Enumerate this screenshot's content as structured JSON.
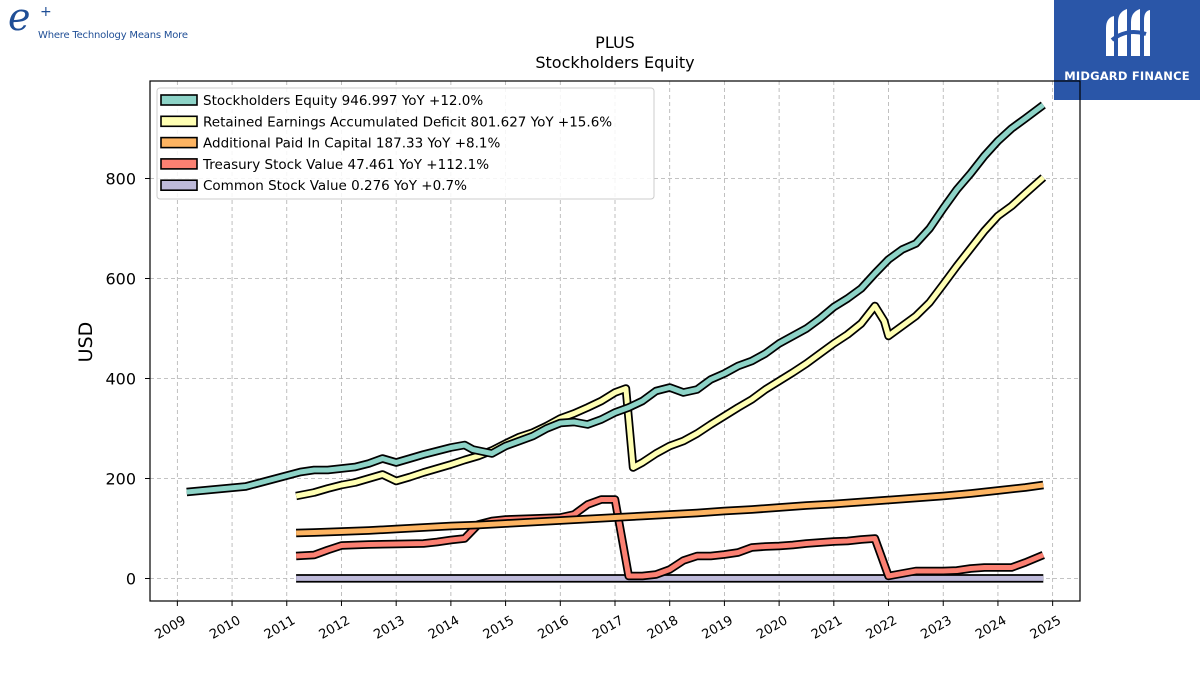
{
  "logo_left": {
    "mark": "e",
    "plus": "+",
    "tagline": "Where Technology Means More"
  },
  "logo_right": {
    "name": "MIDGARD FINANCE",
    "icon": "midgard-logo-icon"
  },
  "colors": {
    "stockholders_equity": "#8dd3c7",
    "retained_earnings": "#ffffb3",
    "additional_paid_in_capital": "#fdb462",
    "treasury_stock": "#fb8072",
    "common_stock": "#bebada",
    "brand_blue": "#2a56a8"
  },
  "chart_data": {
    "type": "line",
    "title": "PLUS",
    "subtitle": "Stockholders  Equity",
    "xlabel": "",
    "ylabel": "USD",
    "xlim": [
      2008.5,
      2025.5
    ],
    "ylim": [
      -45,
      995
    ],
    "x_ticks": [
      "2009",
      "2010",
      "2011",
      "2012",
      "2013",
      "2014",
      "2015",
      "2016",
      "2017",
      "2018",
      "2019",
      "2020",
      "2021",
      "2022",
      "2023",
      "2024",
      "2025"
    ],
    "y_ticks": [
      0,
      200,
      400,
      600,
      800
    ],
    "grid": true,
    "legend_position": "top-left",
    "series": [
      {
        "name": "Stockholders Equity",
        "legend": "Stockholders Equity  946.997 YoY +12.0%",
        "color": "#8dd3c7",
        "points": [
          [
            2009.17,
            173
          ],
          [
            2010.25,
            184
          ],
          [
            2011.25,
            213
          ],
          [
            2011.5,
            217
          ],
          [
            2011.75,
            217
          ],
          [
            2012.0,
            220
          ],
          [
            2012.25,
            223
          ],
          [
            2012.5,
            230
          ],
          [
            2012.75,
            240
          ],
          [
            2013.0,
            232
          ],
          [
            2013.25,
            240
          ],
          [
            2013.5,
            248
          ],
          [
            2013.75,
            255
          ],
          [
            2014.0,
            262
          ],
          [
            2014.25,
            267
          ],
          [
            2014.4,
            258
          ],
          [
            2014.75,
            250
          ],
          [
            2015.0,
            265
          ],
          [
            2015.25,
            275
          ],
          [
            2015.5,
            285
          ],
          [
            2015.75,
            300
          ],
          [
            2016.0,
            311
          ],
          [
            2016.25,
            313
          ],
          [
            2016.5,
            308
          ],
          [
            2016.75,
            318
          ],
          [
            2017.0,
            332
          ],
          [
            2017.25,
            342
          ],
          [
            2017.5,
            355
          ],
          [
            2017.75,
            375
          ],
          [
            2018.0,
            382
          ],
          [
            2018.25,
            372
          ],
          [
            2018.5,
            378
          ],
          [
            2018.75,
            398
          ],
          [
            2019.0,
            410
          ],
          [
            2019.25,
            425
          ],
          [
            2019.5,
            435
          ],
          [
            2019.75,
            450
          ],
          [
            2020.0,
            470
          ],
          [
            2020.25,
            485
          ],
          [
            2020.5,
            500
          ],
          [
            2020.75,
            520
          ],
          [
            2021.0,
            543
          ],
          [
            2021.25,
            560
          ],
          [
            2021.5,
            580
          ],
          [
            2021.75,
            610
          ],
          [
            2022.0,
            638
          ],
          [
            2022.25,
            658
          ],
          [
            2022.5,
            670
          ],
          [
            2022.75,
            700
          ],
          [
            2023.0,
            740
          ],
          [
            2023.25,
            778
          ],
          [
            2023.5,
            810
          ],
          [
            2023.75,
            845
          ],
          [
            2024.0,
            875
          ],
          [
            2024.25,
            900
          ],
          [
            2024.5,
            920
          ],
          [
            2024.83,
            947
          ]
        ]
      },
      {
        "name": "Retained Earnings Accumulated Deficit",
        "legend": "Retained Earnings Accumulated Deficit  801.627 YoY +15.6%",
        "color": "#ffffb3",
        "points": [
          [
            2011.17,
            165
          ],
          [
            2011.5,
            172
          ],
          [
            2011.75,
            180
          ],
          [
            2012.0,
            187
          ],
          [
            2012.25,
            192
          ],
          [
            2012.5,
            200
          ],
          [
            2012.75,
            208
          ],
          [
            2013.0,
            195
          ],
          [
            2013.25,
            203
          ],
          [
            2013.5,
            212
          ],
          [
            2013.75,
            220
          ],
          [
            2014.0,
            228
          ],
          [
            2014.25,
            237
          ],
          [
            2014.5,
            245
          ],
          [
            2014.75,
            256
          ],
          [
            2015.0,
            270
          ],
          [
            2015.25,
            283
          ],
          [
            2015.5,
            292
          ],
          [
            2015.75,
            305
          ],
          [
            2016.0,
            320
          ],
          [
            2016.25,
            330
          ],
          [
            2016.5,
            342
          ],
          [
            2016.75,
            355
          ],
          [
            2017.0,
            372
          ],
          [
            2017.2,
            380
          ],
          [
            2017.33,
            222
          ],
          [
            2017.5,
            232
          ],
          [
            2017.75,
            250
          ],
          [
            2018.0,
            265
          ],
          [
            2018.25,
            275
          ],
          [
            2018.5,
            290
          ],
          [
            2018.75,
            308
          ],
          [
            2019.0,
            325
          ],
          [
            2019.25,
            342
          ],
          [
            2019.5,
            358
          ],
          [
            2019.75,
            378
          ],
          [
            2020.0,
            395
          ],
          [
            2020.25,
            412
          ],
          [
            2020.5,
            430
          ],
          [
            2020.75,
            450
          ],
          [
            2021.0,
            470
          ],
          [
            2021.25,
            488
          ],
          [
            2021.5,
            510
          ],
          [
            2021.75,
            545
          ],
          [
            2021.92,
            515
          ],
          [
            2022.0,
            485
          ],
          [
            2022.25,
            505
          ],
          [
            2022.5,
            525
          ],
          [
            2022.75,
            552
          ],
          [
            2023.0,
            588
          ],
          [
            2023.25,
            625
          ],
          [
            2023.5,
            660
          ],
          [
            2023.75,
            695
          ],
          [
            2024.0,
            725
          ],
          [
            2024.25,
            745
          ],
          [
            2024.5,
            770
          ],
          [
            2024.83,
            802
          ]
        ]
      },
      {
        "name": "Additional Paid In Capital",
        "legend": "Additional Paid In Capital  187.33 YoY +8.1%",
        "color": "#fdb462",
        "points": [
          [
            2011.17,
            91
          ],
          [
            2011.5,
            92
          ],
          [
            2012.0,
            94
          ],
          [
            2012.5,
            96
          ],
          [
            2013.0,
            99
          ],
          [
            2013.5,
            102
          ],
          [
            2014.0,
            105
          ],
          [
            2014.5,
            107
          ],
          [
            2015.0,
            110
          ],
          [
            2015.5,
            113
          ],
          [
            2016.0,
            116
          ],
          [
            2016.5,
            119
          ],
          [
            2017.0,
            122
          ],
          [
            2017.5,
            125
          ],
          [
            2018.0,
            128
          ],
          [
            2018.5,
            131
          ],
          [
            2019.0,
            135
          ],
          [
            2019.5,
            138
          ],
          [
            2020.0,
            142
          ],
          [
            2020.5,
            146
          ],
          [
            2021.0,
            149
          ],
          [
            2021.5,
            153
          ],
          [
            2022.0,
            157
          ],
          [
            2022.5,
            161
          ],
          [
            2023.0,
            165
          ],
          [
            2023.5,
            170
          ],
          [
            2024.0,
            176
          ],
          [
            2024.5,
            182
          ],
          [
            2024.83,
            187
          ]
        ]
      },
      {
        "name": "Treasury Stock Value",
        "legend": "Treasury Stock Value  47.461 YoY +112.1%",
        "color": "#fb8072",
        "points": [
          [
            2011.17,
            45
          ],
          [
            2011.5,
            47
          ],
          [
            2011.75,
            57
          ],
          [
            2012.0,
            66
          ],
          [
            2012.5,
            68
          ],
          [
            2013.0,
            69
          ],
          [
            2013.5,
            70
          ],
          [
            2013.75,
            73
          ],
          [
            2014.0,
            77
          ],
          [
            2014.25,
            80
          ],
          [
            2014.5,
            108
          ],
          [
            2014.75,
            115
          ],
          [
            2015.0,
            118
          ],
          [
            2015.5,
            120
          ],
          [
            2016.0,
            122
          ],
          [
            2016.25,
            128
          ],
          [
            2016.5,
            148
          ],
          [
            2016.75,
            158
          ],
          [
            2017.0,
            158
          ],
          [
            2017.25,
            5
          ],
          [
            2017.5,
            5
          ],
          [
            2017.75,
            8
          ],
          [
            2018.0,
            18
          ],
          [
            2018.25,
            36
          ],
          [
            2018.5,
            45
          ],
          [
            2018.75,
            45
          ],
          [
            2019.0,
            48
          ],
          [
            2019.25,
            52
          ],
          [
            2019.5,
            62
          ],
          [
            2019.75,
            64
          ],
          [
            2020.0,
            65
          ],
          [
            2020.25,
            67
          ],
          [
            2020.5,
            70
          ],
          [
            2020.75,
            72
          ],
          [
            2021.0,
            74
          ],
          [
            2021.25,
            75
          ],
          [
            2021.5,
            78
          ],
          [
            2021.75,
            80
          ],
          [
            2022.0,
            5
          ],
          [
            2022.25,
            10
          ],
          [
            2022.5,
            15
          ],
          [
            2022.75,
            15
          ],
          [
            2023.0,
            15
          ],
          [
            2023.25,
            16
          ],
          [
            2023.5,
            20
          ],
          [
            2023.75,
            22
          ],
          [
            2024.0,
            22
          ],
          [
            2024.25,
            22
          ],
          [
            2024.5,
            32
          ],
          [
            2024.83,
            47
          ]
        ]
      },
      {
        "name": "Common Stock Value",
        "legend": "Common Stock Value  0.276 YoY +0.7%",
        "color": "#bebada",
        "points": [
          [
            2011.17,
            0.27
          ],
          [
            2024.83,
            0.28
          ]
        ]
      }
    ]
  }
}
